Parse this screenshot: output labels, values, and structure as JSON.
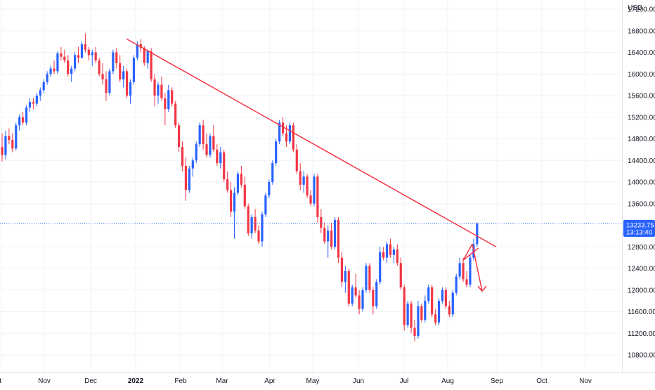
{
  "chart_data": {
    "type": "candlestick",
    "currency_label": "USD",
    "x_ticks": [
      "ct",
      "Nov",
      "Dec",
      "2022",
      "Feb",
      "Mar",
      "Apr",
      "May",
      "Jun",
      "Jul",
      "Aug",
      "Sep",
      "Oct",
      "Nov"
    ],
    "y_ticks": [
      "10800.00",
      "11200.00",
      "11600.00",
      "12000.00",
      "12400.00",
      "12800.00",
      "13600.00",
      "14000.00",
      "14400.00",
      "14800.00",
      "15200.00",
      "15600.00",
      "16000.00",
      "16400.00",
      "16800.00",
      "17200.00"
    ],
    "ylim": [
      10600,
      17400
    ],
    "last_price": {
      "value": 13233.75,
      "label": "13233.75",
      "countdown": "13:13:40"
    },
    "colors": {
      "up": "#2962ff",
      "down": "#f23645",
      "trend": "#f23645",
      "axis_text": "#131722",
      "price_badge": "#2962ff",
      "price_line": "#2962ff"
    },
    "candles": [
      [
        14650,
        14900,
        14380,
        14500
      ],
      [
        14500,
        14950,
        14420,
        14850
      ],
      [
        14850,
        14990,
        14700,
        14780
      ],
      [
        14780,
        14900,
        14550,
        14620
      ],
      [
        14620,
        15100,
        14580,
        15050
      ],
      [
        15050,
        15250,
        14950,
        15200
      ],
      [
        15200,
        15300,
        15050,
        15100
      ],
      [
        15100,
        15420,
        15050,
        15380
      ],
      [
        15380,
        15550,
        15300,
        15480
      ],
      [
        15480,
        15560,
        15350,
        15450
      ],
      [
        15450,
        15650,
        15400,
        15600
      ],
      [
        15600,
        15750,
        15500,
        15700
      ],
      [
        15700,
        15900,
        15650,
        15850
      ],
      [
        15850,
        16050,
        15800,
        16000
      ],
      [
        16000,
        16150,
        15950,
        16100
      ],
      [
        16100,
        16250,
        16000,
        16050
      ],
      [
        16050,
        16420,
        16000,
        16380
      ],
      [
        16380,
        16500,
        16250,
        16320
      ],
      [
        16320,
        16450,
        16200,
        16250
      ],
      [
        16250,
        16350,
        15950,
        16000
      ],
      [
        16000,
        16150,
        15850,
        16100
      ],
      [
        16100,
        16400,
        16050,
        16350
      ],
      [
        16350,
        16500,
        16200,
        16300
      ],
      [
        16300,
        16600,
        16280,
        16550
      ],
      [
        16550,
        16750,
        16400,
        16450
      ],
      [
        16450,
        16500,
        16250,
        16350
      ],
      [
        16350,
        16450,
        16150,
        16400
      ],
      [
        16400,
        16500,
        16200,
        16250
      ],
      [
        16250,
        16300,
        15950,
        16000
      ],
      [
        16000,
        16200,
        15800,
        15900
      ],
      [
        15900,
        16050,
        15500,
        15650
      ],
      [
        15650,
        16100,
        15600,
        16050
      ],
      [
        16050,
        16450,
        16000,
        16400
      ],
      [
        16400,
        16480,
        16100,
        16200
      ],
      [
        16200,
        16350,
        15850,
        15900
      ],
      [
        15900,
        16150,
        15750,
        16050
      ],
      [
        16050,
        16100,
        15550,
        15600
      ],
      [
        15600,
        15900,
        15450,
        15850
      ],
      [
        15850,
        16350,
        15800,
        16300
      ],
      [
        16300,
        16600,
        16250,
        16550
      ],
      [
        16550,
        16650,
        16400,
        16480
      ],
      [
        16480,
        16520,
        16150,
        16200
      ],
      [
        16200,
        16450,
        16100,
        16420
      ],
      [
        16420,
        16480,
        15850,
        15900
      ],
      [
        15900,
        16000,
        15400,
        15600
      ],
      [
        15600,
        15850,
        15450,
        15800
      ],
      [
        15800,
        15950,
        15500,
        15550
      ],
      [
        15550,
        15650,
        15050,
        15350
      ],
      [
        15350,
        15800,
        15300,
        15700
      ],
      [
        15700,
        15750,
        15400,
        15450
      ],
      [
        15450,
        15500,
        15000,
        15050
      ],
      [
        15050,
        15100,
        14550,
        14650
      ],
      [
        14650,
        14750,
        14200,
        14300
      ],
      [
        14300,
        14450,
        13650,
        13850
      ],
      [
        13850,
        14300,
        13800,
        14250
      ],
      [
        14250,
        14450,
        14100,
        14400
      ],
      [
        14400,
        14750,
        14350,
        14700
      ],
      [
        14700,
        15100,
        14650,
        15050
      ],
      [
        15050,
        15150,
        14600,
        14700
      ],
      [
        14700,
        14900,
        14450,
        14500
      ],
      [
        14500,
        14900,
        14450,
        14850
      ],
      [
        14850,
        15050,
        14550,
        14600
      ],
      [
        14600,
        14700,
        14300,
        14350
      ],
      [
        14350,
        14650,
        14250,
        14550
      ],
      [
        14550,
        14600,
        14000,
        14050
      ],
      [
        14050,
        14200,
        13800,
        13850
      ],
      [
        13850,
        14000,
        13350,
        13450
      ],
      [
        13450,
        13900,
        12950,
        13800
      ],
      [
        13800,
        14200,
        13750,
        14150
      ],
      [
        14150,
        14300,
        13900,
        13950
      ],
      [
        13950,
        14100,
        13500,
        13550
      ],
      [
        13550,
        13600,
        13000,
        13050
      ],
      [
        13050,
        13400,
        12950,
        13350
      ],
      [
        13350,
        13500,
        13050,
        13100
      ],
      [
        13100,
        13200,
        12850,
        12900
      ],
      [
        12900,
        13450,
        12800,
        13400
      ],
      [
        13400,
        13800,
        13350,
        13750
      ],
      [
        13750,
        14050,
        13700,
        14000
      ],
      [
        14000,
        14400,
        13950,
        14350
      ],
      [
        14350,
        14800,
        14300,
        14750
      ],
      [
        14750,
        15150,
        14700,
        15100
      ],
      [
        15100,
        15200,
        14850,
        14900
      ],
      [
        14900,
        15050,
        14650,
        14750
      ],
      [
        14750,
        15100,
        14700,
        15050
      ],
      [
        15050,
        15100,
        14550,
        14600
      ],
      [
        14600,
        14700,
        14150,
        14200
      ],
      [
        14200,
        14350,
        13850,
        13950
      ],
      [
        13950,
        14200,
        13800,
        14100
      ],
      [
        14100,
        14150,
        13700,
        13750
      ],
      [
        13750,
        13850,
        13550,
        13600
      ],
      [
        13600,
        14150,
        13550,
        14100
      ],
      [
        14100,
        14150,
        13250,
        13350
      ],
      [
        13350,
        13500,
        13050,
        13150
      ],
      [
        13150,
        13250,
        12850,
        12900
      ],
      [
        12900,
        13200,
        12600,
        13100
      ],
      [
        13100,
        13250,
        12750,
        12800
      ],
      [
        12800,
        13350,
        12750,
        13300
      ],
      [
        13300,
        13350,
        12500,
        12600
      ],
      [
        12600,
        12700,
        12050,
        12150
      ],
      [
        12150,
        12450,
        11950,
        12350
      ],
      [
        12350,
        12400,
        11700,
        11750
      ],
      [
        11750,
        12100,
        11700,
        12050
      ],
      [
        12050,
        12300,
        11850,
        11900
      ],
      [
        11900,
        12000,
        11550,
        11650
      ],
      [
        11650,
        12050,
        11600,
        12000
      ],
      [
        12000,
        12500,
        11950,
        12450
      ],
      [
        12450,
        12500,
        11950,
        12000
      ],
      [
        12000,
        12050,
        11550,
        11700
      ],
      [
        11700,
        12200,
        11650,
        12150
      ],
      [
        12150,
        12800,
        12100,
        12700
      ],
      [
        12700,
        12800,
        12550,
        12600
      ],
      [
        12600,
        12900,
        12500,
        12850
      ],
      [
        12850,
        12950,
        12600,
        12650
      ],
      [
        12650,
        12800,
        12500,
        12750
      ],
      [
        12750,
        12850,
        12450,
        12500
      ],
      [
        12500,
        12600,
        12000,
        12050
      ],
      [
        12050,
        12100,
        11250,
        11350
      ],
      [
        11350,
        11800,
        11300,
        11750
      ],
      [
        11750,
        11800,
        11200,
        11300
      ],
      [
        11300,
        11450,
        11050,
        11150
      ],
      [
        11150,
        11800,
        11100,
        11700
      ],
      [
        11700,
        11750,
        11400,
        11450
      ],
      [
        11450,
        11900,
        11400,
        11800
      ],
      [
        11800,
        12100,
        11750,
        12050
      ],
      [
        12050,
        12100,
        11500,
        11550
      ],
      [
        11550,
        11650,
        11350,
        11400
      ],
      [
        11400,
        11850,
        11350,
        11800
      ],
      [
        11800,
        12050,
        11750,
        12000
      ],
      [
        12000,
        12050,
        11650,
        11700
      ],
      [
        11700,
        11800,
        11500,
        11550
      ],
      [
        11550,
        12000,
        11500,
        11950
      ],
      [
        11950,
        12300,
        11900,
        12250
      ],
      [
        12250,
        12600,
        12200,
        12500
      ],
      [
        12500,
        12600,
        12150,
        12200
      ],
      [
        12200,
        12350,
        12050,
        12100
      ],
      [
        12100,
        12650,
        12050,
        12600
      ],
      [
        12600,
        12950,
        12550,
        12850
      ],
      [
        12850,
        13250,
        12800,
        13233.75
      ]
    ],
    "trendline": [
      {
        "i": 0,
        "price": 16650
      },
      {
        "i": 1,
        "price": 12800
      }
    ],
    "projection_path": [
      12780,
      12550,
      12850,
      11980
    ]
  }
}
